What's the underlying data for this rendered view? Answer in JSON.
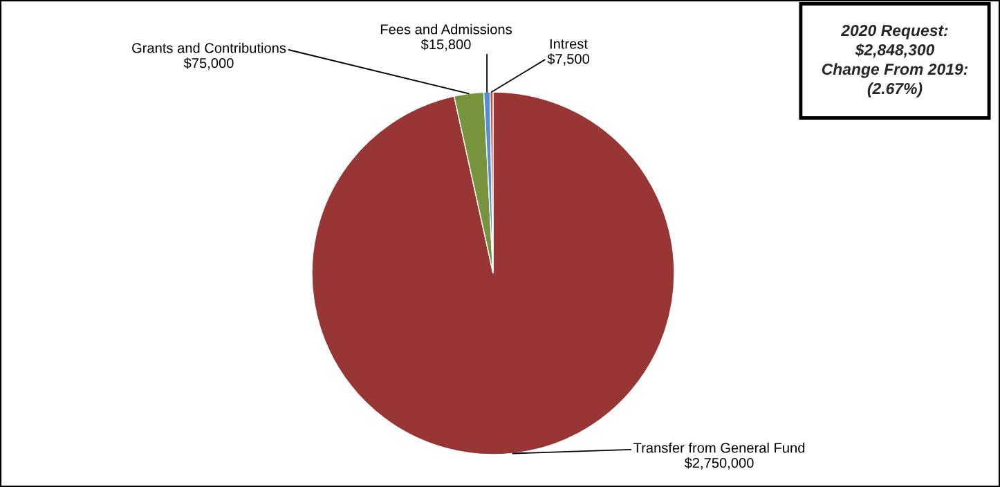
{
  "chart_data": {
    "type": "pie",
    "categories": [
      "Transfer from General Fund",
      "Grants and Contributions",
      "Fees and Admissions",
      "Intrest"
    ],
    "values": [
      2750000,
      75000,
      15800,
      7500
    ],
    "colors": [
      "#983636",
      "#77933c",
      "#558ed5",
      "#c0504d"
    ],
    "value_labels": [
      "$2,750,000",
      "$75,000",
      "$15,800",
      "$7,500"
    ],
    "annotations": [
      "2020 Request:",
      "$2,848,300",
      "Change From 2019:",
      "(2.67%)"
    ],
    "legend": false
  }
}
